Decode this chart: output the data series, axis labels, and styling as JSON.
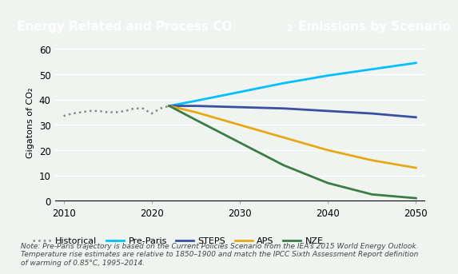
{
  "title": "Energy Related and Process CO₂ Emissions by Scenario",
  "title_bg_color": "#1a6e4a",
  "title_text_color": "#ffffff",
  "chart_bg_color": "#f0f4f0",
  "ylabel": "Gigatons of CO₂",
  "xlabel": "",
  "ylim": [
    0,
    62
  ],
  "xlim": [
    2009,
    2051
  ],
  "yticks": [
    0,
    10,
    20,
    30,
    40,
    50,
    60
  ],
  "xticks": [
    2010,
    2020,
    2030,
    2040,
    2050
  ],
  "note": "Note: Pre-Paris trajectory is based on the Current Policies Scenario from the IEA’s 2015 World Energy Outlook.\nTemperature rise estimates are relative to 1850–1900 and match the IPCC Sixth Assessment Report definition\nof warming of 0.85°C, 1995–2014.",
  "historical": {
    "years": [
      2010,
      2011,
      2012,
      2013,
      2014,
      2015,
      2016,
      2017,
      2018,
      2019,
      2020,
      2021,
      2022
    ],
    "values": [
      33.5,
      34.5,
      35.0,
      35.5,
      35.5,
      35.0,
      35.0,
      35.5,
      36.5,
      36.5,
      34.5,
      36.5,
      37.5
    ],
    "color": "#888888",
    "linestyle": "dotted",
    "label": "Historical",
    "linewidth": 1.8
  },
  "pre_paris": {
    "years": [
      2022,
      2025,
      2030,
      2035,
      2040,
      2045,
      2050
    ],
    "values": [
      37.5,
      39.5,
      43.0,
      46.5,
      49.5,
      52.0,
      54.5
    ],
    "color": "#00bfff",
    "linestyle": "solid",
    "label": "Pre-Paris",
    "linewidth": 2.0
  },
  "steps": {
    "years": [
      2022,
      2025,
      2030,
      2035,
      2040,
      2045,
      2050
    ],
    "values": [
      37.5,
      37.5,
      37.0,
      36.5,
      35.5,
      34.5,
      33.0
    ],
    "color": "#3b4fa0",
    "linestyle": "solid",
    "label": "STEPS",
    "linewidth": 2.0
  },
  "aps": {
    "years": [
      2022,
      2025,
      2030,
      2035,
      2040,
      2045,
      2050
    ],
    "values": [
      37.5,
      35.0,
      30.0,
      25.0,
      20.0,
      16.0,
      13.0
    ],
    "color": "#e6a817",
    "linestyle": "solid",
    "label": "APS",
    "linewidth": 2.0
  },
  "nze": {
    "years": [
      2022,
      2025,
      2030,
      2035,
      2040,
      2045,
      2050
    ],
    "values": [
      37.5,
      32.0,
      23.0,
      14.0,
      7.0,
      2.5,
      1.0
    ],
    "color": "#3a7d44",
    "linestyle": "solid",
    "label": "NZE",
    "linewidth": 2.0
  }
}
